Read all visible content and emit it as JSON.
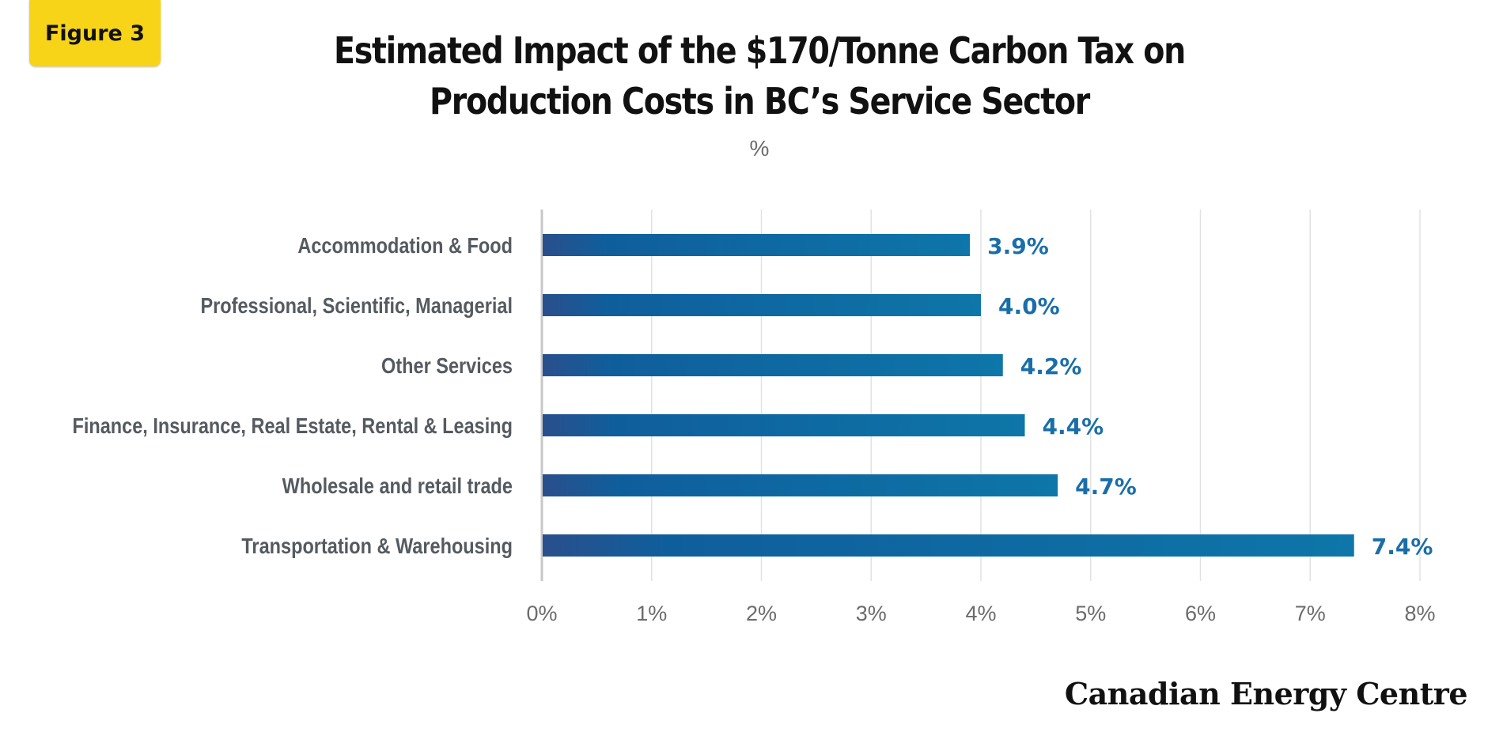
{
  "badge": "Figure 3",
  "brand": "Canadian Energy Centre",
  "chart_data": {
    "type": "bar",
    "orientation": "horizontal",
    "title": "Estimated Impact of the $170/Tonne Carbon Tax on Production Costs in BC’s Service Sector",
    "title_lines": [
      "Estimated Impact of the $170/Tonne Carbon Tax on",
      "Production Costs in BC’s Service Sector"
    ],
    "subtitle": "%",
    "categories": [
      "Accommodation & Food",
      "Professional, Scientific, Managerial",
      "Other Services",
      "Finance, Insurance, Real Estate, Rental & Leasing",
      "Wholesale and retail trade",
      "Transportation & Warehousing"
    ],
    "values": [
      3.9,
      4.0,
      4.2,
      4.4,
      4.7,
      7.4
    ],
    "data_labels": [
      "3.9%",
      "4.0%",
      "4.2%",
      "4.4%",
      "4.7%",
      "7.4%"
    ],
    "xlim": [
      0,
      8
    ],
    "xticks": [
      0,
      1,
      2,
      3,
      4,
      5,
      6,
      7,
      8
    ],
    "xtick_labels": [
      "0%",
      "1%",
      "2%",
      "3%",
      "4%",
      "5%",
      "6%",
      "7%",
      "8%"
    ],
    "grid": "vertical",
    "legend": "none",
    "colors": {
      "bar_start": "#2a4f8c",
      "bar_mid": "#0f5e9c",
      "bar_end": "#0e76a8",
      "data_label": "#1a6ea8",
      "category_label": "#555a60",
      "tick_label": "#6b6b6b",
      "grid": "#e2e2e2",
      "badge": "#f7d417"
    }
  }
}
